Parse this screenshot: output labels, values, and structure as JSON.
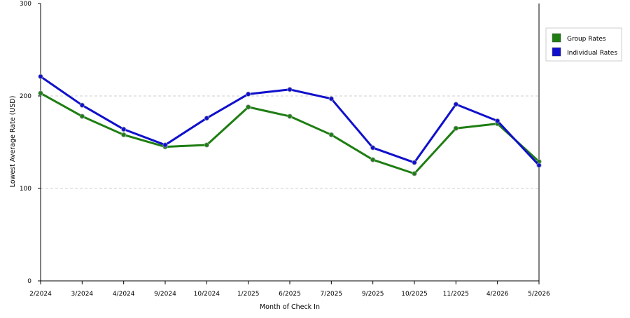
{
  "chart_data": {
    "type": "line",
    "title": "",
    "xlabel": "Month of Check In",
    "ylabel": "Lowest Average Rate (USD)",
    "ylim": [
      0,
      300
    ],
    "yticks": [
      0,
      100,
      200,
      300
    ],
    "grid": "horizontal dashed at 100 and 200",
    "legend_position": "right",
    "categories": [
      "2/2024",
      "3/2024",
      "4/2024",
      "9/2024",
      "10/2024",
      "1/2025",
      "6/2025",
      "7/2025",
      "9/2025",
      "10/2025",
      "11/2025",
      "4/2026",
      "5/2026"
    ],
    "series": [
      {
        "name": "Group Rates",
        "color": "#1e7e12",
        "values": [
          203,
          178,
          158,
          145,
          147,
          188,
          178,
          158,
          131,
          116,
          165,
          170,
          129
        ]
      },
      {
        "name": "Individual Rates",
        "color": "#1010cc",
        "values": [
          221,
          190,
          164,
          147,
          176,
          202,
          207,
          197,
          144,
          128,
          191,
          173,
          125
        ]
      }
    ]
  }
}
